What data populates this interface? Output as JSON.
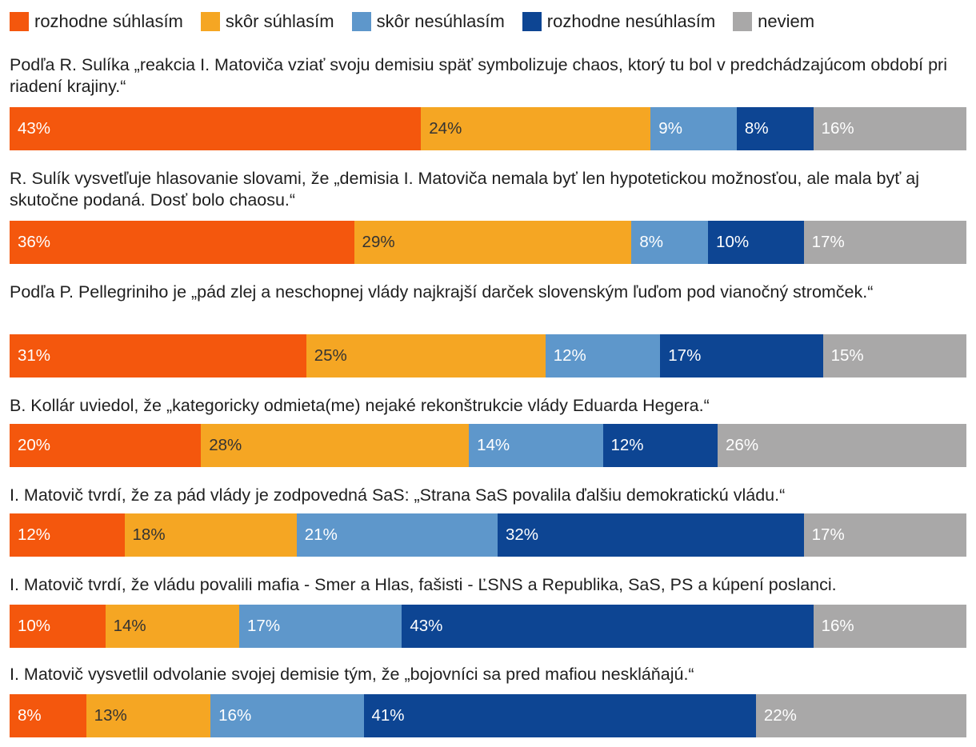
{
  "chart_data": {
    "type": "bar",
    "orientation": "horizontal",
    "stacked": true,
    "legend": [
      {
        "label": "rozhodne súhlasím",
        "color": "#F4570D"
      },
      {
        "label": "skôr súhlasím",
        "color": "#F5A623"
      },
      {
        "label": "skôr nesúhlasím",
        "color": "#5E97CB"
      },
      {
        "label": "rozhodne nesúhlasím",
        "color": "#0D4593"
      },
      {
        "label": "neviem",
        "color": "#A9A8A8"
      }
    ],
    "label_colors": [
      "#ffffff",
      "#333333",
      "#ffffff",
      "#ffffff",
      "#ffffff"
    ],
    "categories": [
      "Podľa R. Sulíka „reakcia I. Matoviča vziať svoju demisiu späť symbolizuje chaos, ktorý tu bol v predchádzajúcom období pri riadení krajiny.“",
      "R. Sulík vysvetľuje hlasovanie slovami, že „demisia I. Matoviča nemala byť len hypotetickou možnosťou, ale mala byť aj skutočne podaná. Dosť bolo chaosu.“",
      "Podľa P. Pellegriniho je „pád zlej a neschopnej vlády najkrajší darček slovenským ľuďom pod vianočný stromček.“",
      "B. Kollár uviedol, že „kategoricky odmieta(me) nejaké rekonštrukcie vlády Eduarda Hegera.“",
      "I. Matovič tvrdí, že za pád vlády je zodpovedná SaS: „Strana SaS povalila ďalšiu demokratickú vládu.“",
      "I. Matovič tvrdí, že vládu povalili mafia - Smer a Hlas, fašisti - ĽSNS a Republika, SaS, PS a kúpení poslanci.",
      "I. Matovič vysvetlil odvolanie svojej demisie tým, že „bojovníci sa pred mafiou neskláňajú.“"
    ],
    "series": [
      {
        "name": "rozhodne súhlasím",
        "values": [
          43,
          36,
          31,
          20,
          12,
          10,
          8
        ]
      },
      {
        "name": "skôr súhlasím",
        "values": [
          24,
          29,
          25,
          28,
          18,
          14,
          13
        ]
      },
      {
        "name": "skôr nesúhlasím",
        "values": [
          9,
          8,
          12,
          14,
          21,
          17,
          16
        ]
      },
      {
        "name": "rozhodne nesúhlasím",
        "values": [
          8,
          10,
          17,
          12,
          32,
          43,
          41
        ]
      },
      {
        "name": "neviem",
        "values": [
          16,
          17,
          15,
          26,
          17,
          16,
          22
        ]
      }
    ],
    "value_suffix": "%",
    "xlim": [
      0,
      100
    ]
  }
}
